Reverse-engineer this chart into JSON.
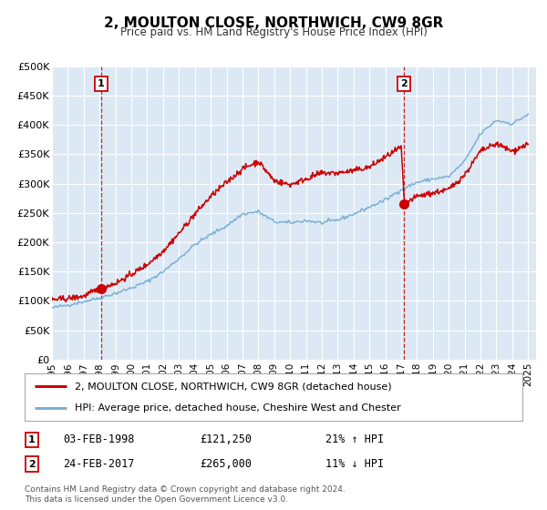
{
  "title": "2, MOULTON CLOSE, NORTHWICH, CW9 8GR",
  "subtitle": "Price paid vs. HM Land Registry's House Price Index (HPI)",
  "background_color": "#ffffff",
  "plot_bg_color": "#dce9f5",
  "grid_color": "#ffffff",
  "red_line_color": "#cc0000",
  "blue_line_color": "#7ab0d4",
  "marker1_date": 1998.09,
  "marker1_value": 121250,
  "marker2_date": 2017.15,
  "marker2_value": 265000,
  "vline1_date": 1998.09,
  "vline2_date": 2017.15,
  "ylim": [
    0,
    500000
  ],
  "xlim": [
    1995,
    2025.5
  ],
  "yticks": [
    0,
    50000,
    100000,
    150000,
    200000,
    250000,
    300000,
    350000,
    400000,
    450000,
    500000
  ],
  "ytick_labels": [
    "£0",
    "£50K",
    "£100K",
    "£150K",
    "£200K",
    "£250K",
    "£300K",
    "£350K",
    "£400K",
    "£450K",
    "£500K"
  ],
  "xticks": [
    1995,
    1996,
    1997,
    1998,
    1999,
    2000,
    2001,
    2002,
    2003,
    2004,
    2005,
    2006,
    2007,
    2008,
    2009,
    2010,
    2011,
    2012,
    2013,
    2014,
    2015,
    2016,
    2017,
    2018,
    2019,
    2020,
    2021,
    2022,
    2023,
    2024,
    2025
  ],
  "legend_label_red": "2, MOULTON CLOSE, NORTHWICH, CW9 8GR (detached house)",
  "legend_label_blue": "HPI: Average price, detached house, Cheshire West and Chester",
  "marker1_date_str": "03-FEB-1998",
  "marker1_price_str": "£121,250",
  "marker1_hpi_pct": "21% ↑ HPI",
  "marker2_date_str": "24-FEB-2017",
  "marker2_price_str": "£265,000",
  "marker2_hpi_pct": "11% ↓ HPI",
  "footer_line1": "Contains HM Land Registry data © Crown copyright and database right 2024.",
  "footer_line2": "This data is licensed under the Open Government Licence v3.0.",
  "hpi_years_base": [
    1995,
    1996,
    1997,
    1998,
    1999,
    2000,
    2001,
    2002,
    2003,
    2004,
    2005,
    2006,
    2007,
    2008,
    2009,
    2010,
    2011,
    2012,
    2013,
    2014,
    2015,
    2016,
    2017,
    2018,
    2019,
    2020,
    2021,
    2022,
    2023,
    2024,
    2025
  ],
  "hpi_values_base": [
    88000,
    93000,
    99000,
    105000,
    113000,
    122000,
    133000,
    150000,
    172000,
    196000,
    213000,
    228000,
    248000,
    252000,
    235000,
    233000,
    237000,
    233000,
    238000,
    248000,
    260000,
    272000,
    290000,
    302000,
    308000,
    312000,
    338000,
    385000,
    408000,
    402000,
    418000
  ],
  "prop_years_base": [
    1995,
    1996,
    1997,
    1998,
    1999,
    2000,
    2001,
    2002,
    2003,
    2004,
    2005,
    2006,
    2007,
    2008,
    2009,
    2010,
    2011,
    2012,
    2013,
    2014,
    2015,
    2016,
    2017,
    2017.2,
    2018,
    2019,
    2020,
    2021,
    2022,
    2023,
    2024,
    2025
  ],
  "prop_values_base": [
    102000,
    104000,
    108000,
    121250,
    130000,
    145000,
    162000,
    185000,
    215000,
    248000,
    278000,
    302000,
    325000,
    338000,
    305000,
    298000,
    308000,
    318000,
    318000,
    322000,
    328000,
    345000,
    362000,
    265000,
    278000,
    284000,
    290000,
    315000,
    355000,
    368000,
    355000,
    368000
  ]
}
